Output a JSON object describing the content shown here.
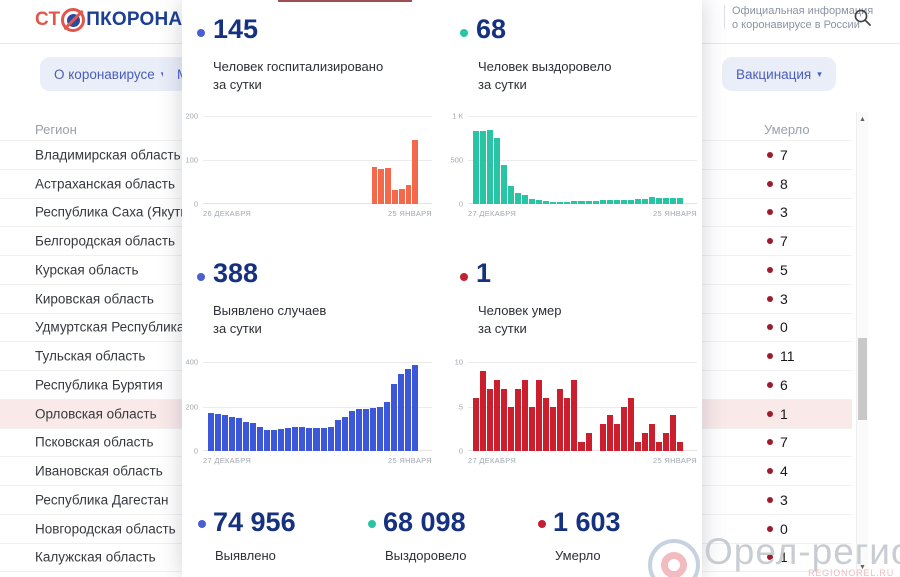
{
  "header": {
    "logo_prefix": "СТ",
    "logo_suffix": "ПКОРОНАВИРУС",
    "tagline_line1": "Официальная информация",
    "tagline_line2": "о коронавирусе в России"
  },
  "nav": {
    "about": "О коронавирусе",
    "cut_button": "М",
    "vaccination": "Вакцинация",
    "caret": "▾"
  },
  "table": {
    "region_header": "Регион",
    "deaths_header": "Умерло",
    "rows": [
      {
        "region": "Владимирская область",
        "deaths": "7",
        "highlight": false
      },
      {
        "region": "Астраханская область",
        "deaths": "8",
        "highlight": false
      },
      {
        "region": "Республика Саха (Якутия)",
        "deaths": "3",
        "highlight": false
      },
      {
        "region": "Белгородская область",
        "deaths": "7",
        "highlight": false
      },
      {
        "region": "Курская область",
        "deaths": "5",
        "highlight": false
      },
      {
        "region": "Кировская область",
        "deaths": "3",
        "highlight": false
      },
      {
        "region": "Удмуртская Республика",
        "deaths": "0",
        "highlight": false
      },
      {
        "region": "Тульская область",
        "deaths": "11",
        "highlight": false
      },
      {
        "region": "Республика Бурятия",
        "deaths": "6",
        "highlight": false
      },
      {
        "region": "Орловская область",
        "deaths": "1",
        "highlight": true
      },
      {
        "region": "Псковская область",
        "deaths": "7",
        "highlight": false
      },
      {
        "region": "Ивановская область",
        "deaths": "4",
        "highlight": false
      },
      {
        "region": "Республика Дагестан",
        "deaths": "3",
        "highlight": false
      },
      {
        "region": "Новгородская область",
        "deaths": "0",
        "highlight": false
      },
      {
        "region": "Калужская область",
        "deaths": "1",
        "highlight": false
      }
    ]
  },
  "modal": {
    "stats": [
      {
        "value": "145",
        "dot_color": "#4A5FD0",
        "label_line1": "Человек госпитализировано",
        "label_line2": "за сутки"
      },
      {
        "value": "68",
        "dot_color": "#28C4A4",
        "label_line1": "Человек выздоровело",
        "label_line2": "за сутки"
      },
      {
        "value": "388",
        "dot_color": "#4A5FD0",
        "label_line1": "Выявлено случаев",
        "label_line2": "за сутки"
      },
      {
        "value": "1",
        "dot_color": "#C22033",
        "label_line1": "Человек умер",
        "label_line2": "за сутки"
      }
    ],
    "totals": [
      {
        "value": "74 956",
        "label": "Выявлено",
        "dot_color": "#4A5FD0"
      },
      {
        "value": "68 098",
        "label": "Выздоровело",
        "dot_color": "#28C4A4"
      },
      {
        "value": "1 603",
        "label": "Умерло",
        "dot_color": "#C22033"
      }
    ]
  },
  "chart_data": [
    {
      "type": "bar",
      "title": "Человек госпитализировано за сутки",
      "color": "#F4694B",
      "ymax": 200,
      "yticks": [
        "200",
        "100",
        "0"
      ],
      "xleft": "26 ДЕКАБРЯ",
      "xright": "25 ЯНВАРЯ",
      "values": [
        0,
        0,
        0,
        0,
        0,
        0,
        0,
        0,
        0,
        0,
        0,
        0,
        0,
        0,
        0,
        0,
        0,
        0,
        0,
        0,
        0,
        0,
        0,
        0,
        85,
        79,
        82,
        32,
        35,
        44,
        145
      ]
    },
    {
      "type": "bar",
      "title": "Человек выздоровело за сутки",
      "color": "#28C4A4",
      "ymax": 1000,
      "yticks": [
        "1 К",
        "500",
        "0"
      ],
      "xleft": "27 ДЕКАБРЯ",
      "xright": "25 ЯНВАРЯ",
      "values": [
        828,
        830,
        838,
        748,
        445,
        205,
        125,
        98,
        60,
        40,
        30,
        28,
        26,
        28,
        30,
        33,
        36,
        38,
        40,
        43,
        45,
        47,
        50,
        52,
        55,
        78,
        68,
        64,
        63,
        68
      ]
    },
    {
      "type": "bar",
      "title": "Выявлено случаев за сутки",
      "color": "#3C57D8",
      "ymax": 400,
      "yticks": [
        "400",
        "200",
        "0"
      ],
      "xleft": "27 ДЕКАБРЯ",
      "xright": "25 ЯНВАРЯ",
      "values": [
        170,
        166,
        160,
        152,
        148,
        130,
        126,
        107,
        96,
        94,
        100,
        104,
        110,
        106,
        104,
        103,
        105,
        110,
        140,
        154,
        180,
        190,
        189,
        192,
        196,
        220,
        300,
        345,
        370,
        388
      ]
    },
    {
      "type": "bar",
      "title": "Человек умер за сутки",
      "color": "#CC1F2D",
      "ymax": 10,
      "yticks": [
        "10",
        "5",
        "0"
      ],
      "xleft": "27 ДЕКАБРЯ",
      "xright": "25 ЯНВАРЯ",
      "values": [
        6,
        9,
        7,
        8,
        7,
        5,
        7,
        8,
        5,
        8,
        6,
        5,
        7,
        6,
        8,
        1,
        2,
        0,
        3,
        4,
        3,
        5,
        6,
        1,
        2,
        3,
        1,
        2,
        4,
        1
      ]
    }
  ],
  "watermark": {
    "title": "Орел-регион",
    "subtitle": "REGIONOREL.RU"
  },
  "colors": {
    "death_dot": "#9E1B2E",
    "accent_navy": "#16317F"
  }
}
